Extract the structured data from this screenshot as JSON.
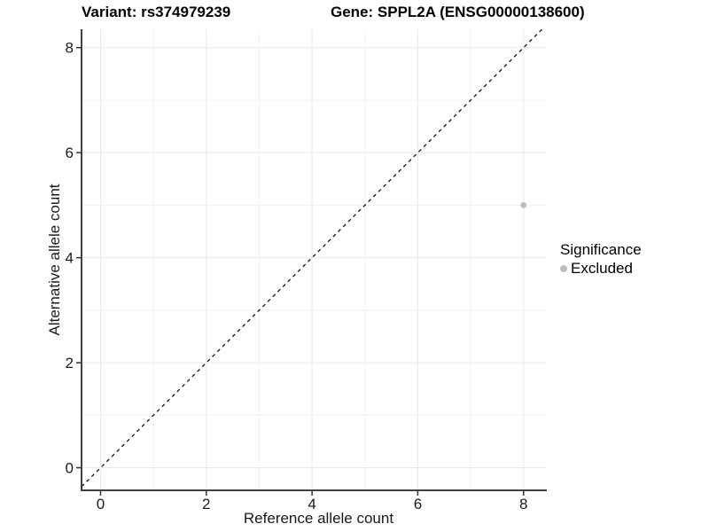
{
  "titles": {
    "variant": "Variant: rs374979239",
    "gene": "Gene: SPPL2A (ENSG00000138600)"
  },
  "chart_data": {
    "type": "scatter",
    "xlabel": "Reference allele count",
    "ylabel": "Alternative allele count",
    "xlim": [
      -0.36,
      8.44
    ],
    "ylim": [
      -0.43,
      8.35
    ],
    "x_ticks": [
      0,
      2,
      4,
      6,
      8
    ],
    "y_ticks": [
      0,
      2,
      4,
      6,
      8
    ],
    "x_minor": [
      1,
      3,
      5,
      7
    ],
    "y_minor": [
      1,
      3,
      5,
      7
    ],
    "grid": true,
    "points": [
      {
        "x": 8,
        "y": 5,
        "series": "Excluded"
      }
    ],
    "reference_line": {
      "type": "identity",
      "style": "dashed"
    },
    "legend": {
      "title": "Significance",
      "position": "right",
      "items": [
        {
          "label": "Excluded",
          "color": "#bebebe"
        }
      ]
    }
  },
  "colors": {
    "background": "#ffffff",
    "grid_major": "#e9e9e9",
    "grid_minor": "#f1f1f1",
    "axis_line": "#404040",
    "tick_mark": "#333333",
    "tick_label": "#1a1a1a",
    "point": "#b9b9b9",
    "dashed_line": "#000000"
  }
}
